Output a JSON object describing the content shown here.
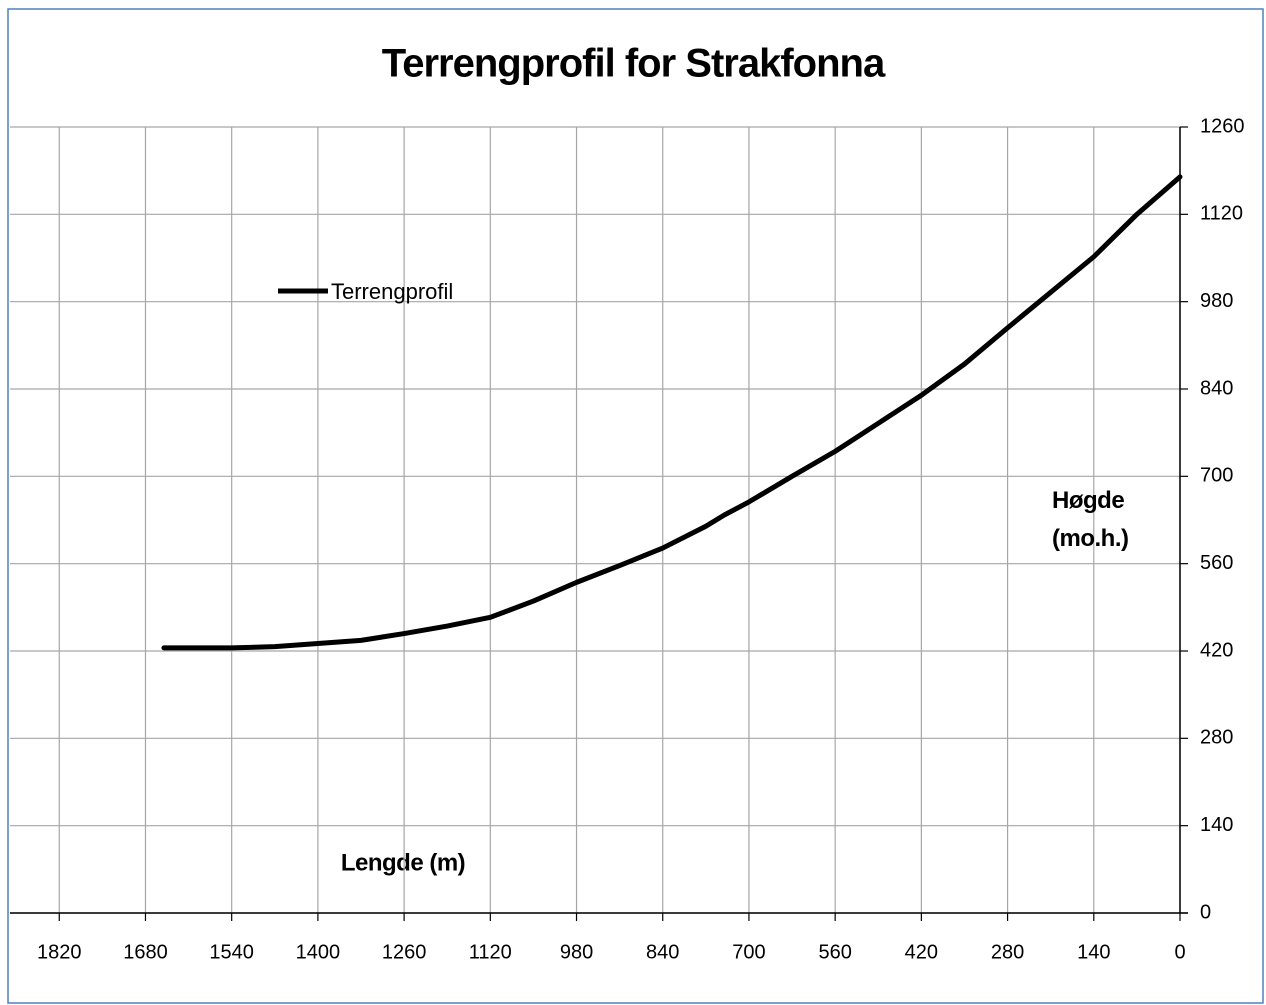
{
  "chart_data": {
    "type": "line",
    "title": "Terrengprofil for Strakfonna",
    "x_label": "Lengde (m)",
    "y_label": "Høgde (mo.h.)",
    "x": [
      1650,
      1610,
      1540,
      1470,
      1400,
      1330,
      1260,
      1190,
      1120,
      1050,
      980,
      910,
      840,
      770,
      740,
      700,
      630,
      560,
      490,
      420,
      350,
      280,
      210,
      140,
      70,
      0
    ],
    "series": [
      {
        "name": "Terrengprofil",
        "color": "#000000",
        "values": [
          425,
          425,
          425,
          427,
          432,
          437,
          448,
          460,
          474,
          500,
          530,
          557,
          585,
          620,
          638,
          659,
          700,
          740,
          785,
          830,
          880,
          938,
          995,
          1052,
          1120,
          1180
        ]
      }
    ],
    "xlim": [
      1900,
      0
    ],
    "xticks": [
      1820,
      1680,
      1540,
      1400,
      1260,
      1120,
      980,
      840,
      700,
      560,
      420,
      280,
      140,
      0
    ],
    "ylim": [
      0,
      1260
    ],
    "yticks": [
      0,
      140,
      280,
      420,
      560,
      700,
      840,
      980,
      1120,
      1260
    ],
    "grid": true,
    "legend": "upper left"
  }
}
